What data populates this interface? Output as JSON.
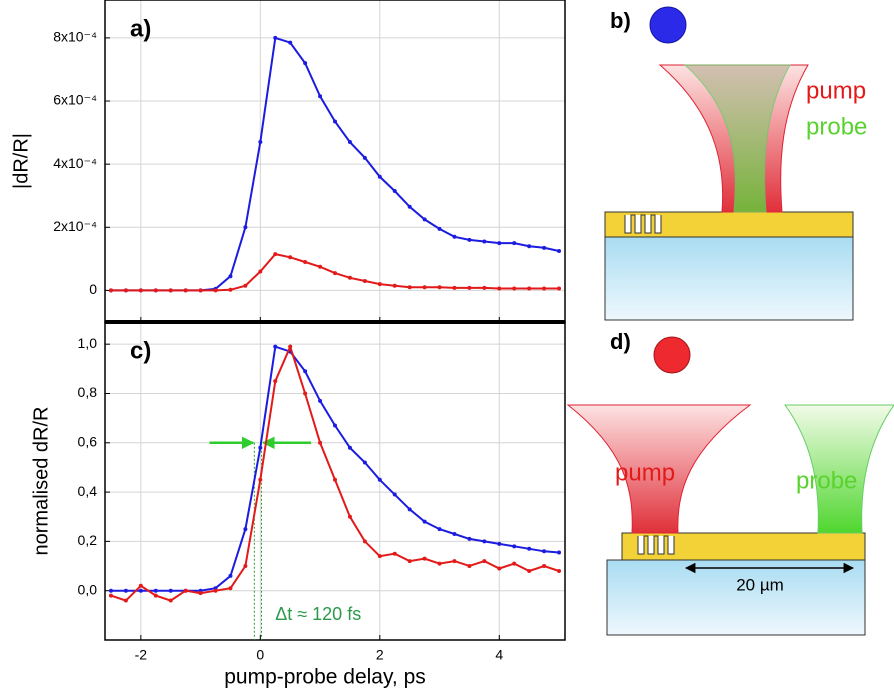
{
  "chart_data": [
    {
      "type": "line",
      "label": "a)",
      "ylabel": "|dR/R|",
      "x": [
        -2.5,
        -2.25,
        -2,
        -1.75,
        -1.5,
        -1.25,
        -1,
        -0.75,
        -0.5,
        -0.25,
        0,
        0.25,
        0.5,
        0.75,
        1,
        1.25,
        1.5,
        1.75,
        2,
        2.25,
        2.5,
        2.75,
        3,
        3.25,
        3.5,
        3.75,
        4,
        4.25,
        4.5,
        4.75,
        5
      ],
      "series": [
        {
          "color": "#1c1ce0",
          "values": [
            0,
            0,
            0,
            0,
            0,
            0,
            0,
            5e-06,
            4.5e-05,
            0.0002,
            0.00047,
            0.0008,
            0.000785,
            0.00072,
            0.000615,
            0.000535,
            0.00047,
            0.00042,
            0.00036,
            0.000315,
            0.000265,
            0.000225,
            0.000195,
            0.00017,
            0.00016,
            0.000155,
            0.00015,
            0.00015,
            0.00014,
            0.000135,
            0.000125
          ]
        },
        {
          "color": "#e31a1a",
          "values": [
            0,
            0,
            0,
            0,
            0,
            0,
            0,
            0,
            2e-06,
            1.5e-05,
            6e-05,
            0.000115,
            0.000105,
            9e-05,
            7.5e-05,
            5.5e-05,
            4e-05,
            3e-05,
            2e-05,
            1.5e-05,
            1e-05,
            1e-05,
            1e-05,
            8e-06,
            8e-06,
            8e-06,
            6e-06,
            6e-06,
            6e-06,
            6e-06,
            6e-06
          ]
        }
      ],
      "xlim": [
        -2.6,
        5.1
      ],
      "xticks": [
        -2,
        0,
        2,
        4
      ],
      "ylim": [
        -0.0001,
        0.00092
      ],
      "yticks": [
        0,
        {
          "value": 0.0002,
          "label": "2x10⁻⁴"
        },
        {
          "value": 0.0004,
          "label": "4x10⁻⁴"
        },
        {
          "value": 0.0006,
          "label": "6x10⁻⁴"
        },
        {
          "value": 0.0008,
          "label": "8x10⁻⁴"
        }
      ],
      "grid": true
    },
    {
      "type": "line",
      "label": "c)",
      "ylabel": "normalised dR/R",
      "xlabel": "pump-probe delay, ps",
      "annotation": "Δt ≈ 120 fs",
      "x": [
        -2.5,
        -2.25,
        -2,
        -1.75,
        -1.5,
        -1.25,
        -1,
        -0.75,
        -0.5,
        -0.25,
        0,
        0.25,
        0.5,
        0.75,
        1,
        1.25,
        1.5,
        1.75,
        2,
        2.25,
        2.5,
        2.75,
        3,
        3.25,
        3.5,
        3.75,
        4,
        4.25,
        4.5,
        4.75,
        5
      ],
      "series": [
        {
          "color": "#1c1ce0",
          "values": [
            0,
            0,
            0,
            0,
            0,
            0,
            0,
            0.01,
            0.06,
            0.25,
            0.58,
            0.99,
            0.97,
            0.89,
            0.77,
            0.67,
            0.58,
            0.52,
            0.45,
            0.39,
            0.33,
            0.28,
            0.25,
            0.23,
            0.21,
            0.2,
            0.19,
            0.18,
            0.17,
            0.16,
            0.155
          ]
        },
        {
          "color": "#e31a1a",
          "values": [
            -0.02,
            -0.04,
            0.02,
            -0.02,
            -0.04,
            0,
            -0.01,
            0,
            0.01,
            0.1,
            0.45,
            0.85,
            0.99,
            0.8,
            0.6,
            0.45,
            0.3,
            0.2,
            0.14,
            0.15,
            0.12,
            0.13,
            0.11,
            0.12,
            0.1,
            0.12,
            0.09,
            0.11,
            0.08,
            0.1,
            0.08
          ]
        }
      ],
      "xlim": [
        -2.6,
        5.1
      ],
      "xticks": [
        -2,
        0,
        2,
        4
      ],
      "ylim": [
        -0.2,
        1.09
      ],
      "yticks": [
        {
          "value": 0,
          "label": "0,0"
        },
        {
          "value": 0.2,
          "label": "0,2"
        },
        {
          "value": 0.4,
          "label": "0,4"
        },
        {
          "value": 0.6,
          "label": "0,6"
        },
        {
          "value": 0.8,
          "label": "0,8"
        },
        {
          "value": 1,
          "label": "1,0"
        }
      ],
      "grid": true
    }
  ],
  "diagrams": {
    "b": {
      "label": "b)",
      "pump": "pump",
      "probe": "probe"
    },
    "d": {
      "label": "d)",
      "pump": "pump",
      "probe": "probe",
      "distance": "20 µm"
    }
  }
}
